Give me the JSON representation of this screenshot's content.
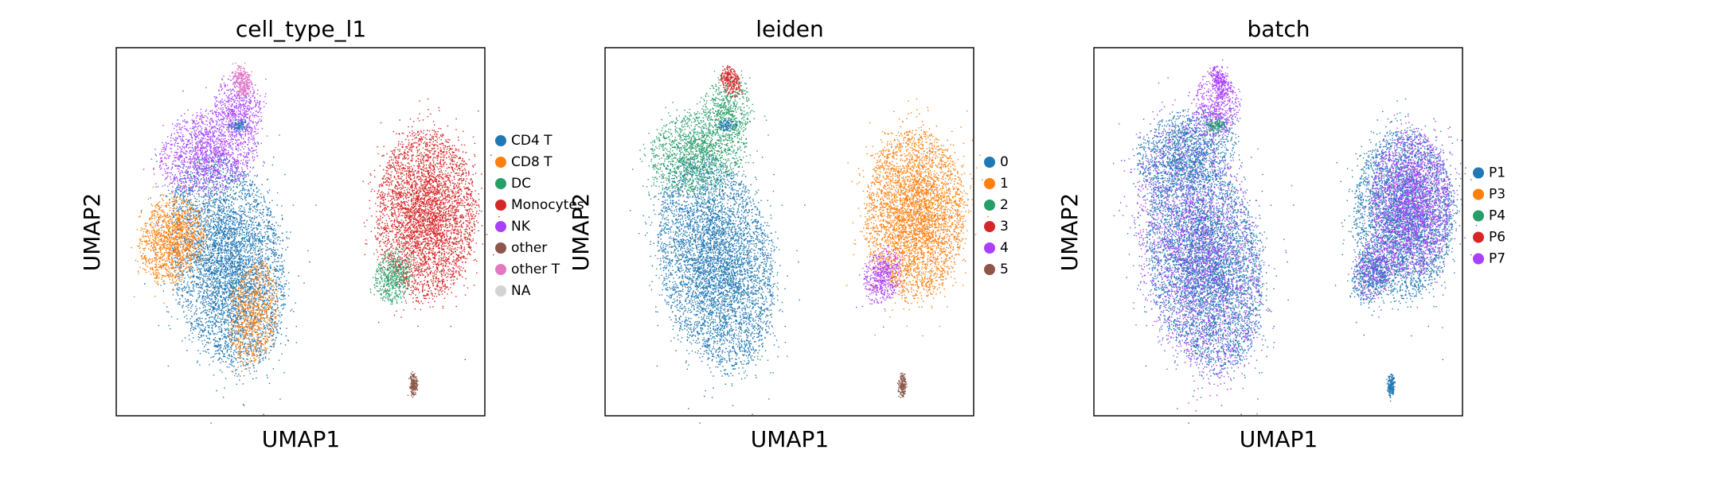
{
  "chart_data": [
    {
      "type": "scatter",
      "title": "cell_type_l1",
      "xlabel": "UMAP1",
      "ylabel": "UMAP2",
      "ticks": "none",
      "legend": "right",
      "categories": [
        "CD4 T",
        "CD8 T",
        "DC",
        "Monocytes",
        "NK",
        "other",
        "other T",
        "NA"
      ],
      "colors": [
        "#1f77b4",
        "#ff7f0e",
        "#279e68",
        "#d62728",
        "#aa40fc",
        "#8c564b",
        "#e377c2",
        "#d3d3d3"
      ],
      "clusters": [
        {
          "category": "CD4 T",
          "region": "large left blob",
          "x": [
            -4.5,
            2.5
          ],
          "y": [
            -7,
            4
          ]
        },
        {
          "category": "CD8 T",
          "region": "patches within left blob",
          "x": [
            -3.5,
            2.5
          ],
          "y": [
            -6,
            3
          ]
        },
        {
          "category": "NK",
          "region": "upper left arm",
          "x": [
            -4.5,
            0.5
          ],
          "y": [
            3,
            9
          ]
        },
        {
          "category": "other T",
          "region": "top tip of left arm",
          "x": [
            1,
            2
          ],
          "y": [
            9,
            11
          ]
        },
        {
          "category": "Monocytes",
          "region": "right blob",
          "x": [
            9,
            14
          ],
          "y": [
            -3,
            6
          ]
        },
        {
          "category": "DC",
          "region": "lower-left of right blob",
          "x": [
            9,
            11
          ],
          "y": [
            -3,
            0
          ]
        },
        {
          "category": "other",
          "region": "small bottom cluster",
          "x": [
            11.5,
            12
          ],
          "y": [
            -10,
            -9
          ]
        }
      ]
    },
    {
      "type": "scatter",
      "title": "leiden",
      "xlabel": "UMAP1",
      "ylabel": "UMAP2",
      "ticks": "none",
      "legend": "right",
      "categories": [
        "0",
        "1",
        "2",
        "3",
        "4",
        "5"
      ],
      "colors": [
        "#1f77b4",
        "#ff7f0e",
        "#279e68",
        "#d62728",
        "#aa40fc",
        "#8c564b"
      ],
      "clusters": [
        {
          "category": "0",
          "region": "large left blob",
          "x": [
            -4.5,
            2.5
          ],
          "y": [
            -7,
            3
          ]
        },
        {
          "category": "2",
          "region": "upper left arm",
          "x": [
            -4.5,
            0.5
          ],
          "y": [
            3,
            9
          ]
        },
        {
          "category": "3",
          "region": "top tip of left arm",
          "x": [
            1,
            2
          ],
          "y": [
            8,
            11
          ]
        },
        {
          "category": "1",
          "region": "right blob",
          "x": [
            9,
            14
          ],
          "y": [
            -3,
            6
          ]
        },
        {
          "category": "4",
          "region": "lower-left of right blob",
          "x": [
            9,
            11
          ],
          "y": [
            -3,
            0
          ]
        },
        {
          "category": "5",
          "region": "small bottom cluster",
          "x": [
            11.5,
            12
          ],
          "y": [
            -10,
            -9
          ]
        }
      ]
    },
    {
      "type": "scatter",
      "title": "batch",
      "xlabel": "UMAP1",
      "ylabel": "UMAP2",
      "ticks": "none",
      "legend": "right",
      "categories": [
        "P1",
        "P3",
        "P4",
        "P6",
        "P7"
      ],
      "colors": [
        "#1f77b4",
        "#ff7f0e",
        "#279e68",
        "#d62728",
        "#aa40fc"
      ],
      "clusters": [
        {
          "category": "P1",
          "region": "mixed throughout",
          "x": [
            -4.5,
            14
          ],
          "y": [
            -10,
            11
          ]
        },
        {
          "category": "P7",
          "region": "mixed throughout",
          "x": [
            -4.5,
            14
          ],
          "y": [
            -10,
            11
          ]
        },
        {
          "category": "P4",
          "region": "top tip of left arm",
          "x": [
            1,
            2
          ],
          "y": [
            8,
            10
          ]
        }
      ]
    }
  ]
}
